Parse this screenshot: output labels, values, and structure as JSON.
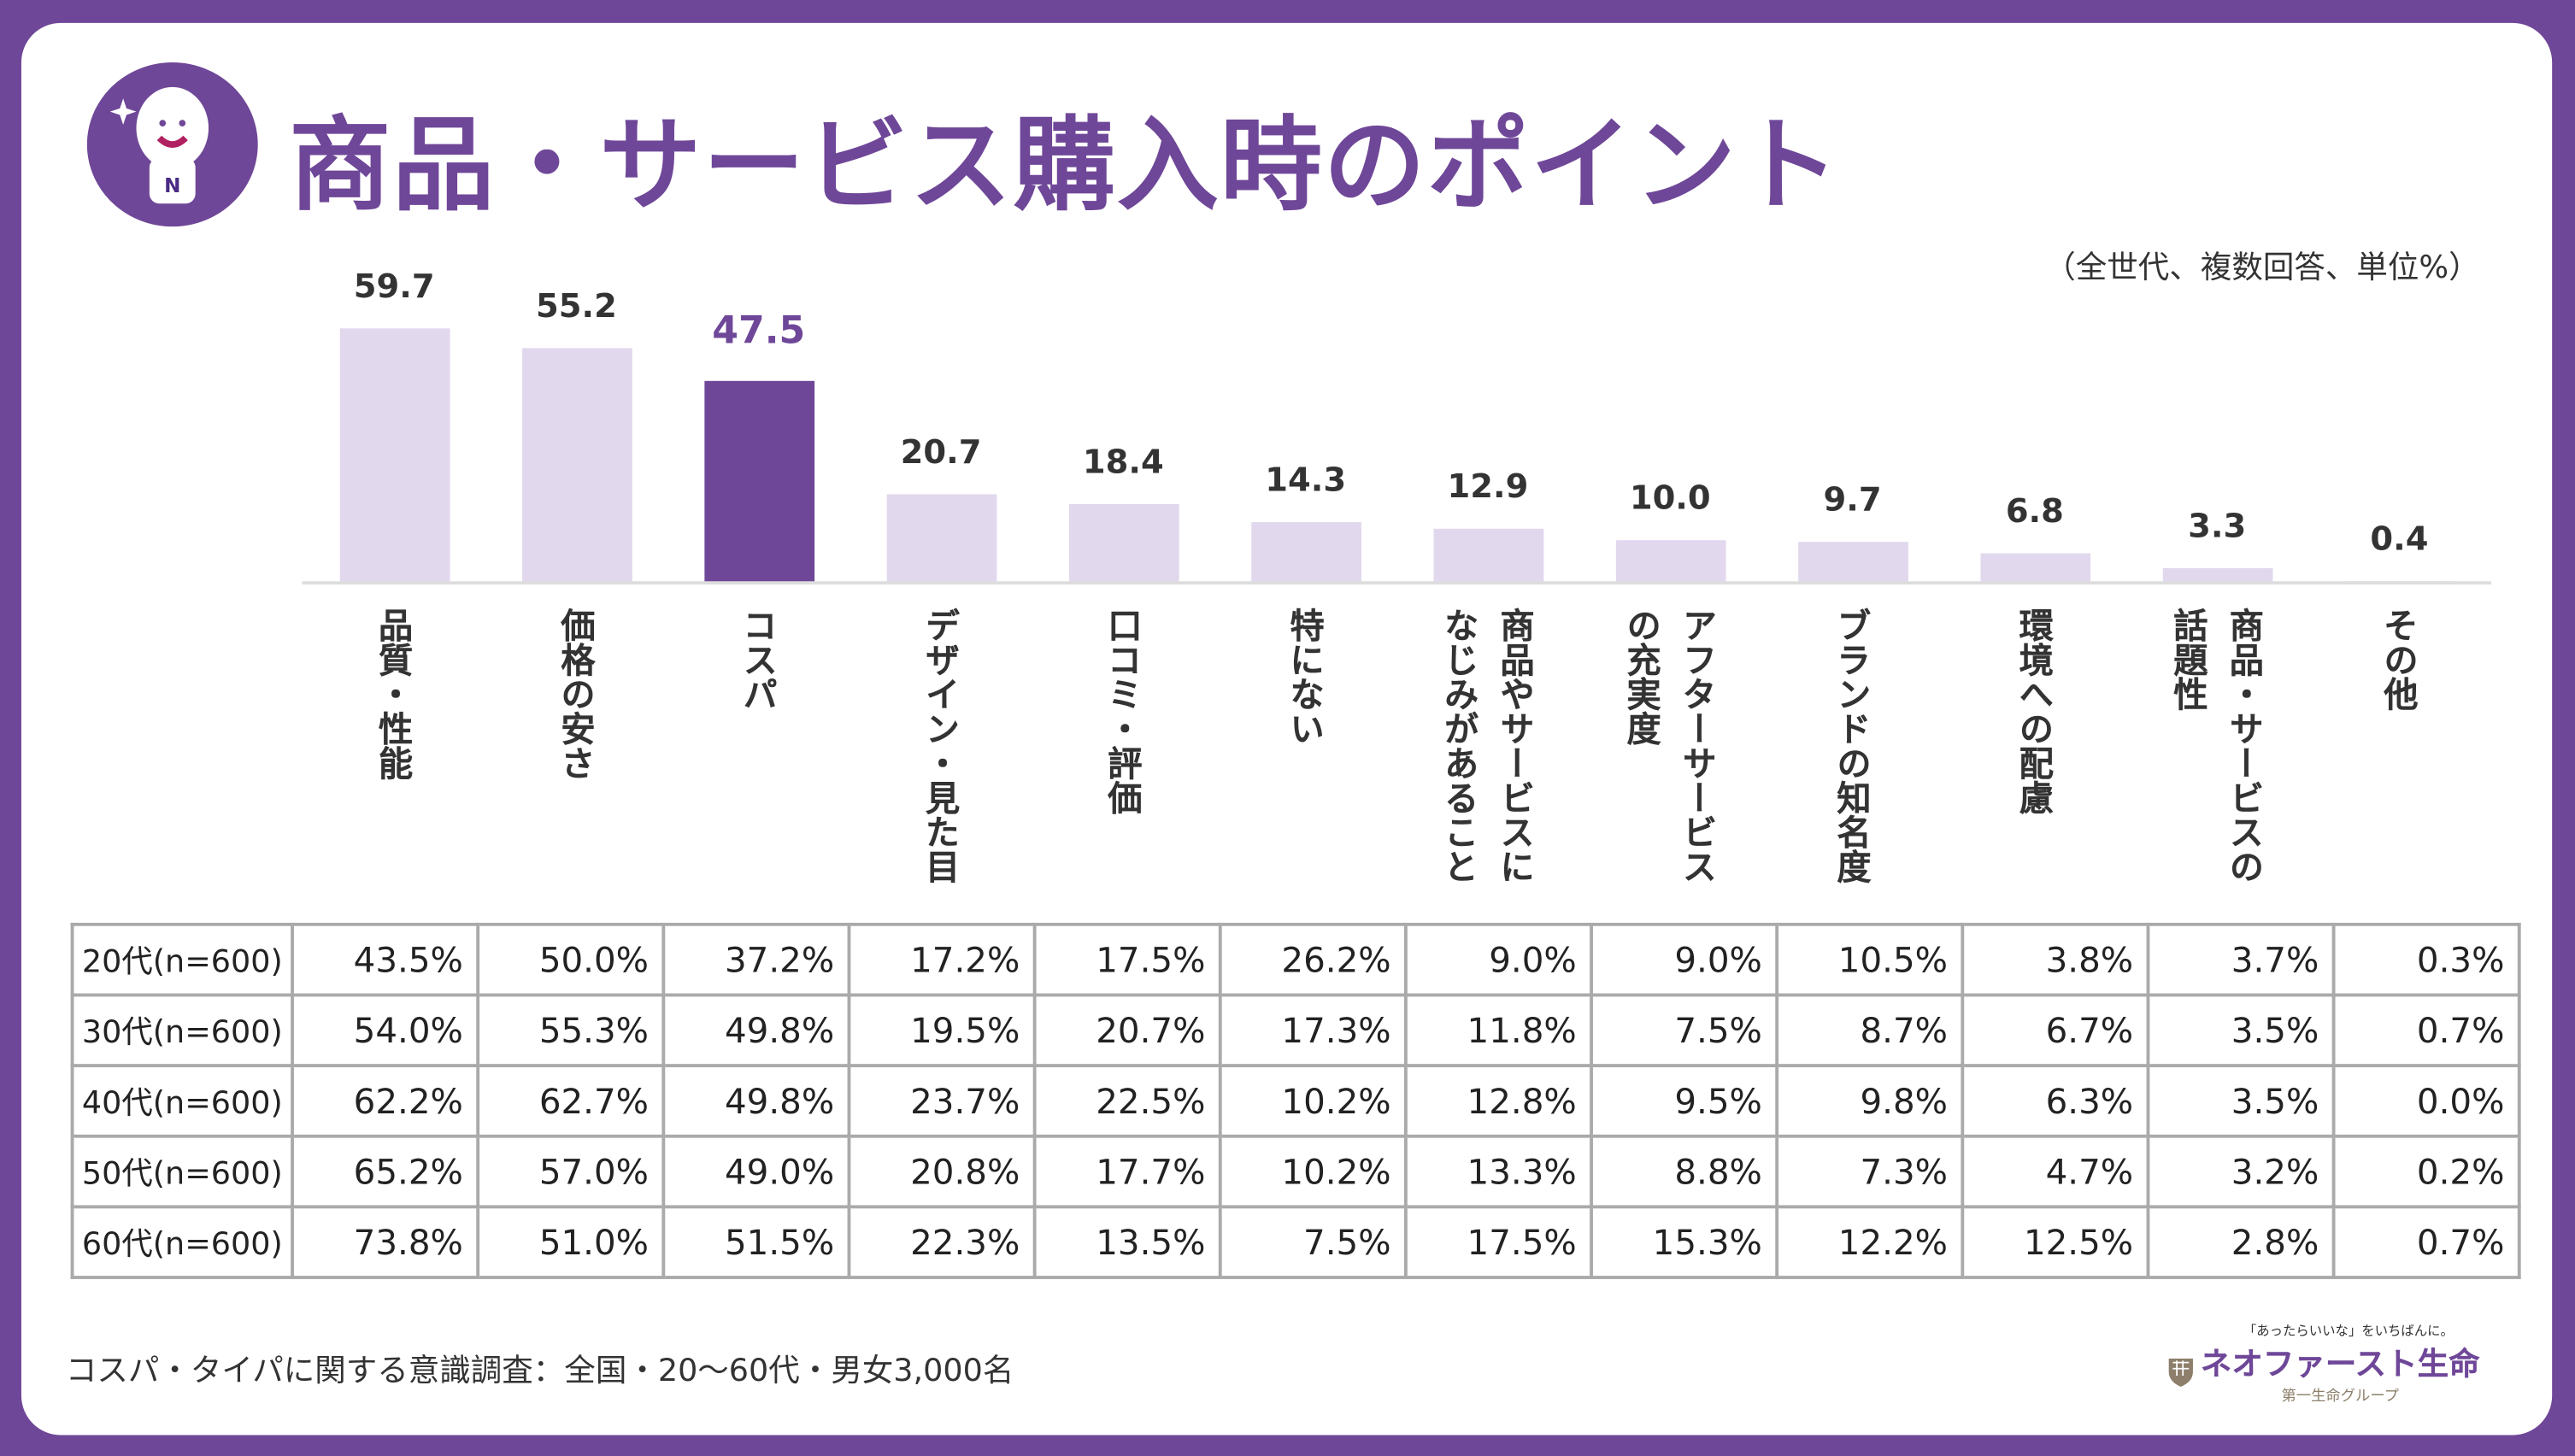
{
  "title": "商品・サービス購入時のポイント",
  "note": "（全世代、複数回答、単位%）",
  "source": "コスパ・タイパに関する意識調査：全国・20～60代・男女3,000名",
  "brand": {
    "tagline": "「あったらいいな」をいちばんに。",
    "name": "ネオファースト生命",
    "group": "第一生命グループ"
  },
  "colors": {
    "accent": "#6f4798",
    "bar": "#e2d8ee",
    "highlight_label": "#6f4798"
  },
  "chart_data": {
    "type": "bar",
    "categories": [
      "品質・性能",
      "価格の安さ",
      "コスパ",
      "デザイン・見た目",
      "口コミ・評価",
      "特にない",
      "商品やサービスに\nなじみがあること",
      "アフターサービス\nの充実度",
      "ブランドの知名度",
      "環境への配慮",
      "商品・サービスの\n話題性",
      "その他"
    ],
    "values": [
      59.7,
      55.2,
      47.5,
      20.7,
      18.4,
      14.3,
      12.9,
      10.0,
      9.7,
      6.8,
      3.3,
      0.4
    ],
    "value_labels": [
      "59.7",
      "55.2",
      "47.5",
      "20.7",
      "18.4",
      "14.3",
      "12.9",
      "10.0",
      "9.7",
      "6.8",
      "3.3",
      "0.4"
    ],
    "highlight_index": 2,
    "ylim": [
      0,
      60
    ]
  },
  "table": {
    "rows": [
      {
        "label": "20代(n=600)",
        "cells": [
          "43.5%",
          "50.0%",
          "37.2%",
          "17.2%",
          "17.5%",
          "26.2%",
          "9.0%",
          "9.0%",
          "10.5%",
          "3.8%",
          "3.7%",
          "0.3%"
        ]
      },
      {
        "label": "30代(n=600)",
        "cells": [
          "54.0%",
          "55.3%",
          "49.8%",
          "19.5%",
          "20.7%",
          "17.3%",
          "11.8%",
          "7.5%",
          "8.7%",
          "6.7%",
          "3.5%",
          "0.7%"
        ]
      },
      {
        "label": "40代(n=600)",
        "cells": [
          "62.2%",
          "62.7%",
          "49.8%",
          "23.7%",
          "22.5%",
          "10.2%",
          "12.8%",
          "9.5%",
          "9.8%",
          "6.3%",
          "3.5%",
          "0.0%"
        ]
      },
      {
        "label": "50代(n=600)",
        "cells": [
          "65.2%",
          "57.0%",
          "49.0%",
          "20.8%",
          "17.7%",
          "10.2%",
          "13.3%",
          "8.8%",
          "7.3%",
          "4.7%",
          "3.2%",
          "0.2%"
        ]
      },
      {
        "label": "60代(n=600)",
        "cells": [
          "73.8%",
          "51.0%",
          "51.5%",
          "22.3%",
          "13.5%",
          "7.5%",
          "17.5%",
          "15.3%",
          "12.2%",
          "12.5%",
          "2.8%",
          "0.7%"
        ]
      }
    ]
  }
}
